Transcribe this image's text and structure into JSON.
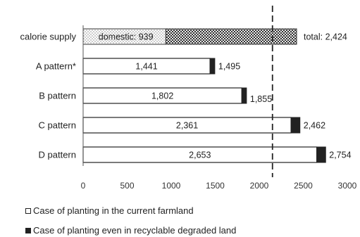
{
  "chart_data": {
    "type": "bar",
    "orientation": "horizontal",
    "stacked": true,
    "categories": [
      "calorie supply",
      "A pattern*",
      "B pattern",
      "C pattern",
      "D pattern"
    ],
    "series": [
      {
        "name": "Case of planting in the current farmland",
        "values": [
          null,
          1441,
          1802,
          2361,
          2653
        ],
        "color": "#ffffff"
      },
      {
        "name": "Case of planting even in recyclable degraded land",
        "values": [
          null,
          54,
          53,
          101,
          101
        ],
        "color": "#222222"
      }
    ],
    "calorie_supply": {
      "domestic": 939,
      "total": 2424,
      "domestic_label": "domestic: 939",
      "total_label": "total: 2,424"
    },
    "data_labels": {
      "current": [
        "1,441",
        "1,802",
        "2,361",
        "2,653"
      ],
      "total": [
        "1,495",
        "1,855",
        "2,462",
        "2,754"
      ]
    },
    "reference_line": 2150,
    "xlim": [
      0,
      3000
    ],
    "xticks": [
      0,
      500,
      1000,
      1500,
      2000,
      2500,
      3000
    ],
    "xticklabels": [
      "0",
      "500",
      "1000",
      "1500",
      "2000",
      "2500",
      "3000"
    ],
    "grid": false,
    "legend_position": "bottom-left"
  },
  "legend": {
    "item1": "Case of planting in the current farmland",
    "item2": "Case of planting even in recyclable degraded land"
  }
}
